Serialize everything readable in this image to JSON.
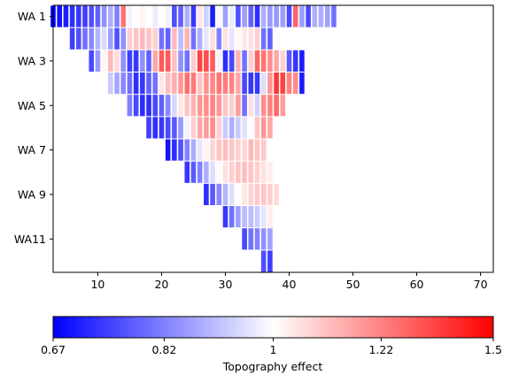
{
  "chart_data": {
    "type": "heatmap",
    "title": "",
    "xlabel": "",
    "ylabel": "",
    "x_range": [
      3,
      72
    ],
    "x_ticks": [
      "10",
      "20",
      "30",
      "40",
      "50",
      "60",
      "70"
    ],
    "x_tick_values": [
      10,
      20,
      30,
      40,
      50,
      60,
      70
    ],
    "y_ticks": [
      "WA 1",
      "WA 3",
      "WA 5",
      "WA 7",
      "WA 9",
      "WA11"
    ],
    "y_tick_rows": [
      1,
      3,
      5,
      7,
      9,
      11
    ],
    "y_range": [
      1,
      12
    ],
    "grid": false,
    "colormap": "bwr",
    "cmap_colors": [
      "#0000ff",
      "#ffffff",
      "#ff0000"
    ],
    "colorbar": {
      "label": "Topography effect",
      "ticks": [
        "0.67",
        "0.82",
        "1",
        "1.22",
        "1.5"
      ],
      "tick_values": [
        0.67,
        0.82,
        1,
        1.22,
        1.5
      ],
      "scale": "log",
      "range": [
        0.67,
        1.5
      ],
      "placement": "bottom"
    },
    "rows": [
      {
        "row": 1,
        "x_start": 3,
        "values": [
          0.67,
          0.69,
          0.7,
          0.72,
          0.73,
          0.74,
          0.76,
          0.78,
          0.84,
          0.88,
          0.82,
          1.25,
          0.98,
          1.0,
          1.02,
          1.0,
          0.97,
          1.0,
          0.98,
          0.76,
          0.78,
          0.88,
          0.73,
          1.04,
          0.93,
          0.7,
          0.99,
          0.86,
          0.97,
          0.76,
          0.86,
          0.78,
          0.72,
          0.88,
          0.85,
          0.85,
          0.86,
          0.75,
          1.28,
          0.86,
          0.75,
          0.88,
          0.88,
          0.86,
          0.8
        ]
      },
      {
        "row": 2,
        "x_start": 6,
        "values": [
          0.74,
          0.76,
          0.8,
          0.83,
          0.89,
          0.94,
          0.86,
          0.76,
          0.84,
          1.08,
          1.1,
          1.12,
          1.1,
          1.08,
          0.8,
          0.78,
          1.12,
          0.9,
          1.13,
          0.8,
          0.88,
          0.96,
          1.05,
          0.82,
          1.05,
          0.96,
          1.01,
          1.04,
          1.05,
          1.08,
          0.8,
          0.78
        ]
      },
      {
        "row": 3,
        "x_start": 9,
        "values": [
          0.75,
          0.85,
          1.02,
          1.12,
          1.06,
          0.84,
          0.74,
          0.73,
          0.84,
          0.78,
          1.15,
          1.3,
          1.3,
          1.1,
          0.84,
          0.8,
          1.08,
          1.35,
          1.33,
          1.3,
          0.98,
          0.72,
          0.75,
          1.13,
          0.8,
          1.08,
          1.28,
          1.25,
          1.2,
          1.15,
          1.07,
          0.77,
          0.73,
          0.7
        ]
      },
      {
        "row": 4,
        "x_start": 12,
        "values": [
          0.92,
          0.87,
          0.83,
          0.8,
          0.72,
          0.73,
          0.78,
          0.8,
          1.04,
          1.11,
          1.14,
          1.18,
          1.26,
          1.24,
          1.1,
          1.19,
          1.21,
          1.25,
          1.23,
          1.22,
          1.15,
          0.75,
          0.73,
          0.73,
          0.95,
          1.18,
          1.38,
          1.35,
          1.22,
          1.2,
          0.7
        ]
      },
      {
        "row": 5,
        "x_start": 15,
        "values": [
          0.82,
          0.75,
          0.72,
          0.72,
          0.75,
          0.78,
          0.83,
          0.94,
          1.04,
          1.1,
          1.13,
          1.18,
          1.2,
          1.22,
          1.18,
          1.1,
          1.08,
          1.17,
          0.8,
          1.05,
          0.93,
          1.2,
          1.22,
          1.27,
          1.17
        ]
      },
      {
        "row": 6,
        "x_start": 18,
        "values": [
          0.74,
          0.72,
          0.73,
          0.75,
          0.77,
          0.85,
          0.98,
          1.08,
          1.15,
          1.17,
          1.2,
          1.08,
          0.92,
          0.88,
          0.92,
          0.95,
          1.0,
          1.1,
          1.18,
          1.15
        ]
      },
      {
        "row": 7,
        "x_start": 21,
        "values": [
          0.69,
          0.72,
          0.76,
          0.82,
          0.88,
          0.96,
          1.02,
          1.07,
          1.1,
          1.11,
          1.1,
          1.08,
          1.07,
          1.12,
          1.1,
          1.09
        ]
      },
      {
        "row": 8,
        "x_start": 24,
        "values": [
          0.73,
          0.77,
          0.82,
          0.88,
          0.95,
          1.01,
          1.05,
          1.08,
          1.1,
          1.11,
          1.1,
          1.08,
          1.05,
          1.03
        ]
      },
      {
        "row": 9,
        "x_start": 27,
        "values": [
          0.72,
          0.77,
          0.83,
          0.89,
          0.95,
          1.0,
          1.04,
          1.07,
          1.09,
          1.1,
          1.08,
          1.06
        ]
      },
      {
        "row": 10,
        "x_start": 30,
        "values": [
          0.73,
          0.8,
          0.86,
          0.9,
          0.9,
          0.92,
          0.96,
          1.03
        ]
      },
      {
        "row": 11,
        "x_start": 33,
        "values": [
          0.75,
          0.8,
          0.82,
          0.84,
          0.86
        ]
      },
      {
        "row": 12,
        "x_start": 36,
        "values": [
          0.76,
          0.74
        ]
      }
    ]
  }
}
